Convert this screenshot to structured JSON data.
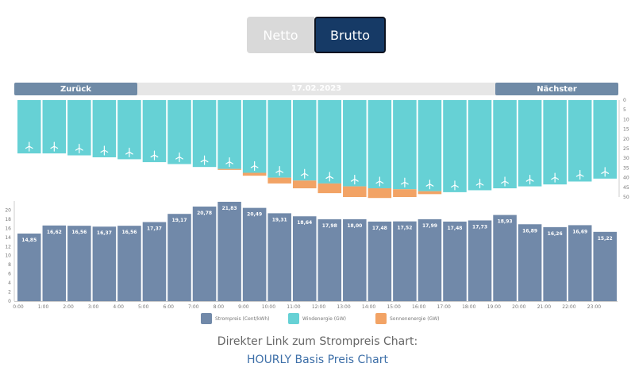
{
  "toggle": {
    "netto_label": "Netto",
    "brutto_label": "Brutto",
    "selected": "Brutto"
  },
  "nav": {
    "prev_label": "Zurück",
    "date": "17.02.2023",
    "next_label": "Nächster"
  },
  "legend": {
    "price_label": "Strompreis (Cent/kWh)",
    "wind_label": "Windenergie (GW)",
    "solar_label": "Sonnenenergie (GW)"
  },
  "footer": {
    "text": "Direkter Link zum Strompreis Chart:",
    "link": "HOURLY Basis Preis Chart"
  },
  "colors": {
    "price": "#7189a9",
    "wind": "#66d1d5",
    "solar": "#f2a365",
    "toggle_active": "#163a66",
    "toggle_inactive": "#d9d9d9",
    "nav": "#6f8aa6",
    "link": "#3d6fa8"
  },
  "chart_data": [
    {
      "type": "bar",
      "title": "",
      "categories": [
        "0:00",
        "1:00",
        "2:00",
        "3:00",
        "4:00",
        "5:00",
        "6:00",
        "7:00",
        "8:00",
        "9:00",
        "10:00",
        "11:00",
        "12:00",
        "13:00",
        "14:00",
        "15:00",
        "16:00",
        "17:00",
        "18:00",
        "19:00",
        "20:00",
        "21:00",
        "22:00",
        "23:00"
      ],
      "series": [
        {
          "name": "Strompreis (Cent/kWh)",
          "values": [
            14.85,
            16.62,
            16.56,
            16.37,
            16.56,
            17.37,
            19.17,
            20.78,
            21.83,
            20.49,
            19.31,
            18.64,
            17.98,
            18.0,
            17.48,
            17.52,
            17.99,
            17.48,
            17.73,
            18.93,
            16.89,
            16.26,
            16.69,
            15.22
          ],
          "labels": [
            "14,85",
            "16,62",
            "16,56",
            "16,37",
            "16,56",
            "17,37",
            "19,17",
            "20,78",
            "21,83",
            "20,49",
            "19,31",
            "18,64",
            "17,98",
            "18,00",
            "17,48",
            "17,52",
            "17,99",
            "17,48",
            "17,73",
            "18,93",
            "16,89",
            "16,26",
            "16,69",
            "15,22"
          ]
        }
      ],
      "ylim": [
        0,
        22
      ],
      "yticks": [
        0,
        2,
        4,
        6,
        8,
        10,
        12,
        14,
        16,
        18,
        20
      ],
      "grid": false
    },
    {
      "type": "bar",
      "title": "",
      "stacked": true,
      "inverted": true,
      "categories": [
        "0:00",
        "1:00",
        "2:00",
        "3:00",
        "4:00",
        "5:00",
        "6:00",
        "7:00",
        "8:00",
        "9:00",
        "10:00",
        "11:00",
        "12:00",
        "13:00",
        "14:00",
        "15:00",
        "16:00",
        "17:00",
        "18:00",
        "19:00",
        "20:00",
        "21:00",
        "22:00",
        "23:00"
      ],
      "series": [
        {
          "name": "Windenergie (GW)",
          "values": [
            27.5,
            27.5,
            28.5,
            29.5,
            30.5,
            32,
            33,
            34.5,
            35.5,
            37.5,
            40,
            41.5,
            43,
            44.5,
            45.5,
            46,
            47,
            47.5,
            46.5,
            45.5,
            44.5,
            43.5,
            42,
            40.5
          ]
        },
        {
          "name": "Sonnenenergie (GW)",
          "values": [
            0,
            0,
            0,
            0,
            0,
            0,
            0,
            0,
            0.5,
            1.5,
            3,
            4,
            5,
            5.5,
            5,
            4,
            1.5,
            0,
            0,
            0,
            0,
            0,
            0,
            0
          ]
        }
      ],
      "ylim": [
        0,
        50
      ],
      "yticks": [
        0,
        5,
        10,
        15,
        20,
        25,
        30,
        35,
        40,
        45,
        50
      ],
      "grid": false
    }
  ]
}
